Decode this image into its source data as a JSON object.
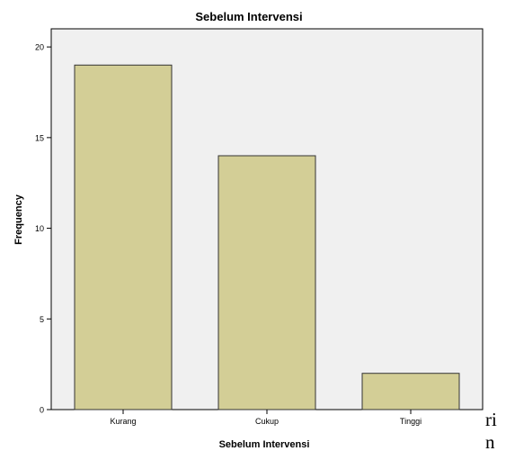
{
  "chart_data": {
    "type": "bar",
    "title": "Sebelum Intervensi",
    "xlabel": "Sebelum Intervensi",
    "ylabel": "Frequency",
    "categories": [
      "Kurang",
      "Cukup",
      "Tinggi"
    ],
    "values": [
      19,
      14,
      2
    ],
    "ylim": [
      0,
      21
    ],
    "yticks": [
      0,
      5,
      10,
      15,
      20
    ],
    "grid": false,
    "legend": "none",
    "colors": {
      "bar_fill": "#d3ce96",
      "bar_stroke": "#333333",
      "plot_bg": "#f0f0f0",
      "axis": "#000000"
    }
  },
  "page_fragment": {
    "line1": "ri",
    "line2": "n"
  }
}
